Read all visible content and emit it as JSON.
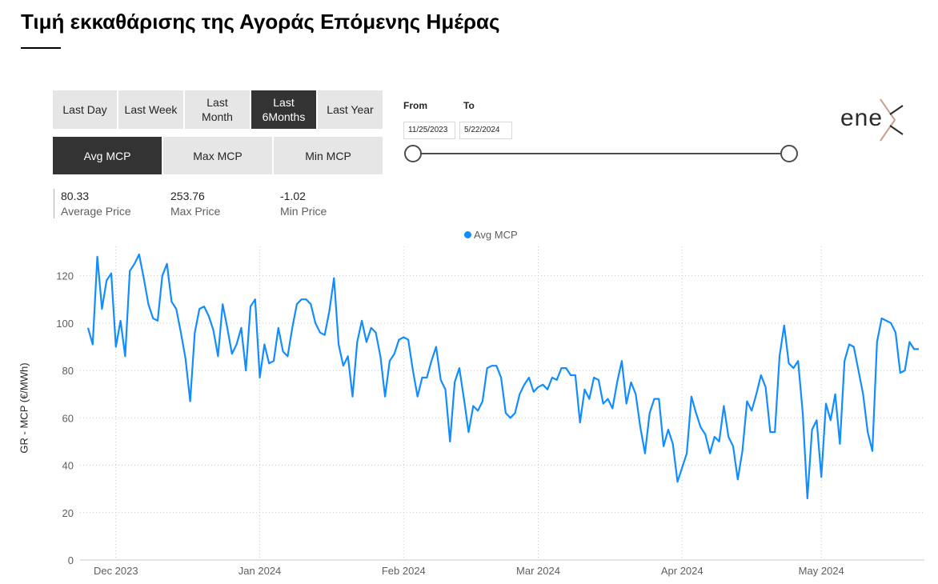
{
  "page": {
    "title": "Τιμή εκκαθάρισης της Αγοράς Επόμενης Ημέρας"
  },
  "period_buttons": [
    {
      "label": "Last Day",
      "active": false
    },
    {
      "label": "Last Week",
      "active": false
    },
    {
      "label": "Last\nMonth",
      "active": false
    },
    {
      "label": "Last\n6Months",
      "active": true
    },
    {
      "label": "Last Year",
      "active": false
    }
  ],
  "measure_buttons": [
    {
      "label": "Avg MCP",
      "active": true
    },
    {
      "label": "Max MCP",
      "active": false
    },
    {
      "label": "Min MCP",
      "active": false
    }
  ],
  "stats": {
    "average": {
      "value": "80.33",
      "label": "Average Price"
    },
    "max": {
      "value": "253.76",
      "label": "Max Price"
    },
    "min": {
      "value": "-1.02",
      "label": "Min Price"
    }
  },
  "date_filter": {
    "from_label": "From",
    "to_label": "To",
    "from_value": "11/25/2023",
    "to_value": "5/22/2024"
  },
  "logo": {
    "text": "ene",
    "accent": "#c9a08a"
  },
  "colors": {
    "series": "#118dff",
    "active_button": "#333333",
    "inactive_button": "#e6e6e6"
  },
  "chart_data": {
    "type": "line",
    "x_start": "2023-11-25",
    "x_end": "2024-05-22",
    "xticks": [
      {
        "label": "Dec 2023",
        "date": "2023-12-01"
      },
      {
        "label": "Jan 2024",
        "date": "2024-01-01"
      },
      {
        "label": "Feb 2024",
        "date": "2024-02-01"
      },
      {
        "label": "Mar 2024",
        "date": "2024-03-01"
      },
      {
        "label": "Apr 2024",
        "date": "2024-04-01"
      },
      {
        "label": "May 2024",
        "date": "2024-05-01"
      }
    ],
    "yticks": [
      0,
      20,
      40,
      60,
      80,
      100,
      120
    ],
    "ylim": [
      0,
      130
    ],
    "ylabel": "GR - MCP (€/MWh)",
    "legend": "Avg MCP",
    "grid": true,
    "series": [
      {
        "name": "Avg MCP",
        "values": [
          98,
          91,
          128,
          106,
          118,
          121,
          90,
          101,
          86,
          122,
          125,
          129,
          119,
          108,
          102,
          101,
          120,
          125,
          109,
          106,
          96,
          85,
          67,
          96,
          106,
          107,
          103,
          97,
          86,
          108,
          98,
          87,
          91,
          98,
          80,
          107,
          110,
          77,
          91,
          83,
          84,
          98,
          88,
          86,
          98,
          108,
          110,
          110,
          108,
          100,
          96,
          95,
          105,
          119,
          91,
          82,
          86,
          69,
          92,
          101,
          92,
          98,
          96,
          86,
          69,
          84,
          87,
          93,
          94,
          93,
          80,
          69,
          77,
          77,
          84,
          90,
          76,
          72,
          50,
          75,
          81,
          68,
          54,
          65,
          63,
          67,
          81,
          82,
          82,
          77,
          62,
          60,
          62,
          70,
          74,
          77,
          71,
          73,
          74,
          72,
          77,
          76,
          81,
          81,
          78,
          78,
          58,
          72,
          68,
          77,
          76,
          66,
          68,
          64,
          75,
          84,
          66,
          75,
          70,
          56,
          45,
          62,
          68,
          68,
          48,
          55,
          49,
          33,
          39,
          45,
          69,
          62,
          56,
          53,
          45,
          52,
          50,
          65,
          52,
          48,
          34,
          46,
          67,
          63,
          70,
          78,
          73,
          54,
          54,
          86,
          99,
          83,
          81,
          84,
          62,
          26,
          55,
          59,
          35,
          66,
          59,
          70,
          49,
          84,
          91,
          90,
          80,
          70,
          54,
          46,
          92,
          102,
          101,
          100,
          96,
          79,
          80,
          92,
          89,
          89
        ]
      }
    ]
  }
}
